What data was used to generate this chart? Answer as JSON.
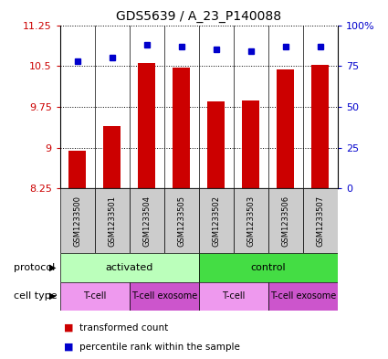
{
  "title": "GDS5639 / A_23_P140088",
  "samples": [
    "GSM1233500",
    "GSM1233501",
    "GSM1233504",
    "GSM1233505",
    "GSM1233502",
    "GSM1233503",
    "GSM1233506",
    "GSM1233507"
  ],
  "red_values": [
    8.95,
    9.4,
    10.55,
    10.47,
    9.85,
    9.87,
    10.43,
    10.52
  ],
  "blue_values": [
    78,
    80,
    88,
    87,
    85,
    84,
    87,
    87
  ],
  "ylim_left": [
    8.25,
    11.25
  ],
  "yticks_left": [
    8.25,
    9.0,
    9.75,
    10.5,
    11.25
  ],
  "ytick_labels_left": [
    "8.25",
    "9",
    "9.75",
    "10.5",
    "11.25"
  ],
  "ylim_right": [
    0,
    100
  ],
  "yticks_right": [
    0,
    25,
    50,
    75,
    100
  ],
  "ytick_labels_right": [
    "0",
    "25",
    "50",
    "75",
    "100%"
  ],
  "bar_color": "#cc0000",
  "dot_color": "#0000cc",
  "protocol_groups": [
    {
      "label": "activated",
      "start": 0,
      "end": 4,
      "color": "#bbffbb"
    },
    {
      "label": "control",
      "start": 4,
      "end": 8,
      "color": "#44dd44"
    }
  ],
  "cell_type_groups": [
    {
      "label": "T-cell",
      "start": 0,
      "end": 2,
      "color": "#ee99ee"
    },
    {
      "label": "T-cell exosome",
      "start": 2,
      "end": 4,
      "color": "#cc55cc"
    },
    {
      "label": "T-cell",
      "start": 4,
      "end": 6,
      "color": "#ee99ee"
    },
    {
      "label": "T-cell exosome",
      "start": 6,
      "end": 8,
      "color": "#cc55cc"
    }
  ],
  "legend_items": [
    {
      "label": "transformed count",
      "color": "#cc0000"
    },
    {
      "label": "percentile rank within the sample",
      "color": "#0000cc"
    }
  ],
  "protocol_label": "protocol",
  "cell_type_label": "cell type",
  "background_color": "#ffffff",
  "sample_bg_color": "#cccccc"
}
